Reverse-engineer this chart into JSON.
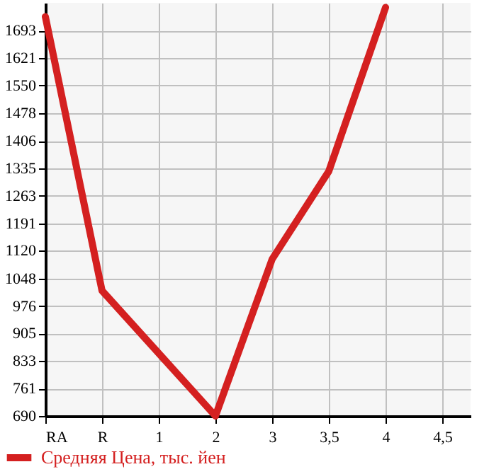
{
  "chart_data": {
    "type": "line",
    "categories": [
      "RA",
      "R",
      "1",
      "2",
      "3",
      "3,5",
      "4",
      "4,5"
    ],
    "series": [
      {
        "name": "Средняя Цена, тыс. йен",
        "color": "#d42020",
        "values": [
          1729,
          1016,
          null,
          690,
          1098,
          1327,
          1753,
          null
        ]
      }
    ],
    "ylim": [
      690,
      1765
    ],
    "yticks": [
      690,
      761,
      833,
      905,
      976,
      1048,
      1120,
      1191,
      1263,
      1335,
      1406,
      1478,
      1550,
      1621,
      1693
    ],
    "grid": true,
    "legend": "bottom left",
    "marker": "none",
    "line_style": "solid"
  }
}
